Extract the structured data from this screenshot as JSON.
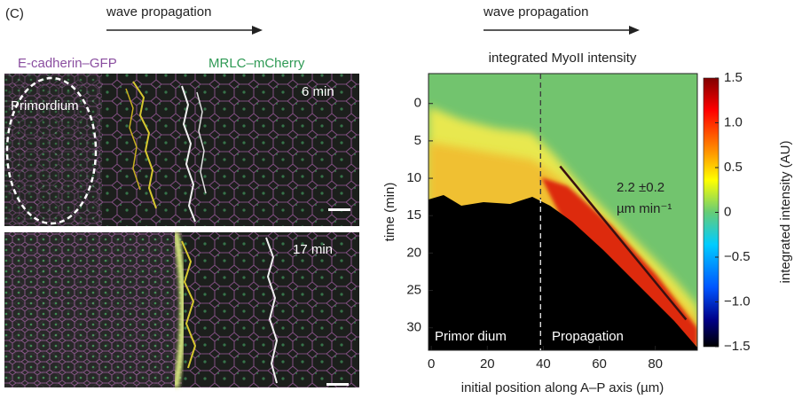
{
  "panel_label": "(C)",
  "left": {
    "arrow_label": "wave propagation",
    "channel_1": "E-cadherin–GFP",
    "channel_2": "MRLC–mCherry",
    "region_label": "Primordium",
    "time_1": "6 min",
    "time_2": "17 min"
  },
  "chart_data": {
    "type": "heatmap",
    "arrow_label": "wave propagation",
    "title": "integrated MyoII intensity",
    "xlabel": "initial position along A–P axis (µm)",
    "ylabel": "time (min)",
    "colorbar_label": "integrated intensity (AU)",
    "xlim": [
      -1,
      95
    ],
    "ylim": [
      -4,
      33
    ],
    "y_inverted": true,
    "xticks": [
      0,
      20,
      40,
      60,
      80
    ],
    "yticks": [
      0,
      5,
      10,
      15,
      20,
      25,
      30
    ],
    "clim": [
      -1.5,
      1.5
    ],
    "cticks": [
      1.5,
      {
        "value": 1,
        "label": "1.0"
      },
      0.5,
      0,
      {
        "value": -0.5,
        "label": "−0.5"
      },
      {
        "value": -1,
        "label": "−1.0"
      },
      {
        "value": -1.5,
        "label": "−1.5"
      }
    ],
    "divider_x": 39,
    "region_labels": [
      "Primor dium",
      "Propagation"
    ],
    "fit_line": {
      "x": [
        46,
        91
      ],
      "y": [
        8.4,
        28.9
      ]
    },
    "annotation": [
      "2.2 ±0.2",
      "µm min⁻¹"
    ]
  }
}
